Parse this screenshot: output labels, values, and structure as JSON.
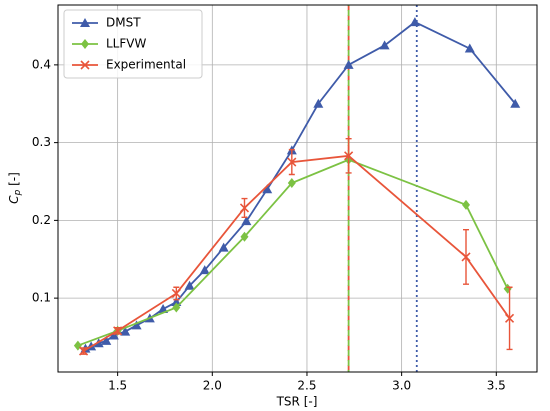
{
  "chart_data": {
    "type": "line",
    "xlabel": "TSR [-]",
    "ylabel": [
      "C",
      "p",
      " [-]"
    ],
    "xlim": [
      1.185,
      3.715
    ],
    "ylim": [
      0.005,
      0.477
    ],
    "xticks": [
      1.5,
      {
        "value": 2,
        "label": "2.0"
      },
      2.5,
      {
        "value": 3,
        "label": "3.0"
      },
      3.5
    ],
    "yticks": [
      0.1,
      0.2,
      0.3,
      0.4
    ],
    "grid": true,
    "legend": "upper left",
    "series": [
      {
        "name": "DMST",
        "color": "#3f5ba9",
        "marker": "triangle",
        "x": [
          1.33,
          1.36,
          1.4,
          1.44,
          1.48,
          1.54,
          1.6,
          1.67,
          1.74,
          1.81,
          1.88,
          1.96,
          2.06,
          2.18,
          2.29,
          2.42,
          2.56,
          2.72,
          2.91,
          3.07,
          3.36,
          3.6
        ],
        "values": [
          0.035,
          0.038,
          0.042,
          0.045,
          0.052,
          0.057,
          0.065,
          0.074,
          0.086,
          0.095,
          0.116,
          0.136,
          0.165,
          0.199,
          0.24,
          0.29,
          0.35,
          0.4,
          0.425,
          0.455,
          0.421,
          0.35
        ]
      },
      {
        "name": "LLFVW",
        "color": "#7cc243",
        "marker": "diamond",
        "x": [
          1.29,
          1.5,
          1.81,
          2.17,
          2.42,
          2.72,
          3.34,
          3.56
        ],
        "values": [
          0.039,
          0.058,
          0.088,
          0.179,
          0.248,
          0.278,
          0.22,
          0.112
        ]
      },
      {
        "name": "Experimental",
        "color": "#e8553a",
        "marker": "x",
        "x": [
          1.32,
          1.5,
          1.81,
          2.17,
          2.42,
          2.72,
          3.34,
          3.57
        ],
        "values": [
          0.032,
          0.058,
          0.106,
          0.216,
          0.275,
          0.283,
          0.153,
          0.074
        ],
        "errors": [
          0.004,
          0.004,
          0.008,
          0.012,
          0.016,
          0.022,
          0.035,
          0.04
        ]
      }
    ],
    "vlines": [
      {
        "x": 2.72,
        "color": "#e8553a",
        "style": "dashed"
      },
      {
        "x": 2.72,
        "color": "#7cc243",
        "style": "dashed-offset"
      },
      {
        "x": 3.08,
        "color": "#3f5ba9",
        "style": "dotted"
      }
    ]
  }
}
